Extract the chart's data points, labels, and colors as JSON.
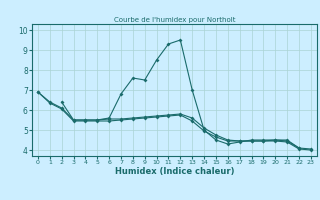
{
  "title": "Courbe de l'humidex pour Northolt",
  "xlabel": "Humidex (Indice chaleur)",
  "background_color": "#cceeff",
  "line_color": "#1a6b6b",
  "grid_color": "#aad4d4",
  "xlim": [
    -0.5,
    23.5
  ],
  "ylim": [
    3.7,
    10.3
  ],
  "xticks": [
    0,
    1,
    2,
    3,
    4,
    5,
    6,
    7,
    8,
    9,
    10,
    11,
    12,
    13,
    14,
    15,
    16,
    17,
    18,
    19,
    20,
    21,
    22,
    23
  ],
  "yticks": [
    4,
    5,
    6,
    7,
    8,
    9,
    10
  ],
  "line1_x": [
    0,
    1,
    2,
    3,
    4,
    5,
    6,
    7,
    8,
    9,
    10,
    11,
    12,
    13,
    14,
    15,
    16,
    17,
    18,
    19,
    20,
    21,
    22
  ],
  "line1_y": [
    6.9,
    6.4,
    6.1,
    5.5,
    5.5,
    5.5,
    5.6,
    6.8,
    7.6,
    7.5,
    8.5,
    9.3,
    9.5,
    7.0,
    5.0,
    4.5,
    4.3,
    4.4,
    4.5,
    4.5,
    4.5,
    4.5,
    4.1
  ],
  "line2_x": [
    2,
    3,
    4,
    5,
    6,
    7,
    8,
    9,
    10,
    11,
    12,
    13,
    14,
    15,
    16,
    17,
    18,
    19,
    20,
    21,
    22,
    23
  ],
  "line2_y": [
    6.4,
    5.5,
    5.5,
    5.5,
    5.55,
    5.55,
    5.6,
    5.65,
    5.7,
    5.75,
    5.8,
    5.6,
    5.1,
    4.75,
    4.5,
    4.45,
    4.45,
    4.45,
    4.5,
    4.45,
    4.1,
    4.05
  ],
  "line3_x": [
    0,
    1,
    2,
    3,
    4,
    5,
    6,
    7,
    8,
    9,
    10,
    11,
    12,
    13,
    14,
    15,
    16,
    17,
    18,
    19,
    20,
    21,
    22,
    23
  ],
  "line3_y": [
    6.9,
    6.35,
    6.05,
    5.45,
    5.45,
    5.45,
    5.45,
    5.5,
    5.55,
    5.6,
    5.65,
    5.7,
    5.75,
    5.45,
    4.95,
    4.65,
    4.45,
    4.45,
    4.45,
    4.45,
    4.45,
    4.4,
    4.05,
    4.0
  ]
}
